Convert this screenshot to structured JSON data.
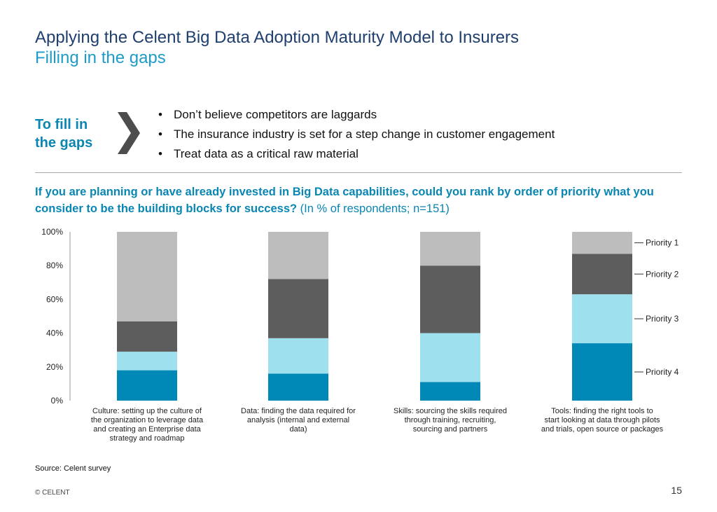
{
  "header": {
    "title": "Applying the Celent Big Data Adoption Maturity Model to Insurers",
    "subtitle": "Filling in the gaps"
  },
  "callout": {
    "label": "To fill in the gaps",
    "bullets": [
      "Don’t believe competitors are laggards",
      "The insurance industry is set for a step change in customer engagement",
      "Treat data as a critical raw material"
    ]
  },
  "question": {
    "bold": "If you are planning or have already invested in Big Data capabilities, could you rank by order of priority what you consider to be the building blocks for success?",
    "note": "(In % of respondents; n=151)"
  },
  "chart_data": {
    "type": "bar",
    "stacked": true,
    "categories": [
      "Culture: setting up the culture of the organization to leverage data and creating an Enterprise data strategy and roadmap",
      "Data: finding the data required for analysis (internal and external data)",
      "Skills: sourcing the skills required through training, recruiting, sourcing and partners",
      "Tools: finding the right tools to start looking at data through pilots and trials, open source or packages"
    ],
    "series": [
      {
        "name": "Priority 4",
        "color": "#0088b6",
        "values": [
          18,
          16,
          11,
          34
        ]
      },
      {
        "name": "Priority 3",
        "color": "#9fe0ee",
        "values": [
          11,
          21,
          29,
          29
        ]
      },
      {
        "name": "Priority 2",
        "color": "#5d5d5d",
        "values": [
          18,
          35,
          40,
          24
        ]
      },
      {
        "name": "Priority 1",
        "color": "#bdbdbd",
        "values": [
          53,
          28,
          20,
          13
        ]
      }
    ],
    "yticks": [
      "0%",
      "20%",
      "40%",
      "60%",
      "80%",
      "100%"
    ],
    "ylim": [
      0,
      100
    ],
    "legend_position": "right"
  },
  "footer": {
    "source": "Source: Celent survey",
    "copyright": "© CELENT",
    "page_number": "15"
  }
}
